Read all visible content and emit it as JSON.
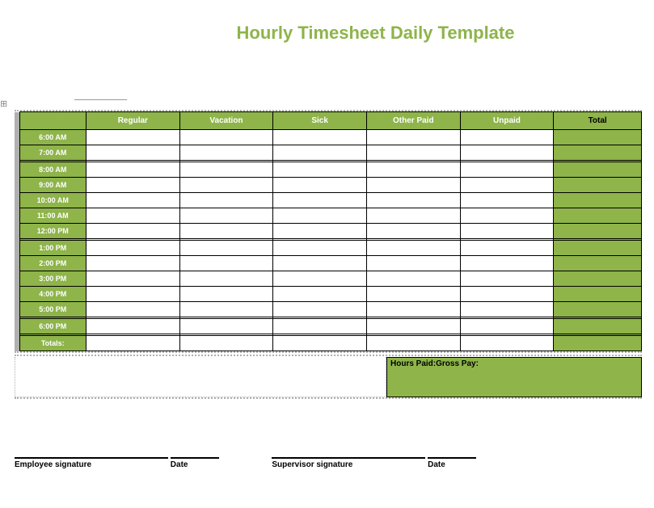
{
  "title": {
    "text": "Hourly Timesheet Daily Template",
    "color": "#8eb44a"
  },
  "colors": {
    "green": "#8eb44a",
    "gutter": "#b0b0b0",
    "border": "#000000",
    "white": "#ffffff"
  },
  "table": {
    "columns": [
      "Regular",
      "Vacation",
      "Sick",
      "Other Paid",
      "Unpaid"
    ],
    "total_label": "Total",
    "times": [
      "6:00 AM",
      "7:00 AM",
      "8:00 AM",
      "9:00 AM",
      "10:00 AM",
      "11:00 AM",
      "12:00 PM",
      "1:00 PM",
      "2:00 PM",
      "3:00 PM",
      "4:00 PM",
      "5:00 PM",
      "6:00 PM"
    ],
    "totals_label": "Totals:",
    "gap_after": [
      1,
      6,
      11,
      12
    ],
    "values": [
      [
        "",
        "",
        "",
        "",
        ""
      ],
      [
        "",
        "",
        "",
        "",
        ""
      ],
      [
        "",
        "",
        "",
        "",
        ""
      ],
      [
        "",
        "",
        "",
        "",
        ""
      ],
      [
        "",
        "",
        "",
        "",
        ""
      ],
      [
        "",
        "",
        "",
        "",
        ""
      ],
      [
        "",
        "",
        "",
        "",
        ""
      ],
      [
        "",
        "",
        "",
        "",
        ""
      ],
      [
        "",
        "",
        "",
        "",
        ""
      ],
      [
        "",
        "",
        "",
        "",
        ""
      ],
      [
        "",
        "",
        "",
        "",
        ""
      ],
      [
        "",
        "",
        "",
        "",
        ""
      ],
      [
        "",
        "",
        "",
        "",
        ""
      ]
    ],
    "row_totals": [
      "",
      "",
      "",
      "",
      "",
      "",
      "",
      "",
      "",
      "",
      "",
      "",
      ""
    ],
    "column_totals": [
      "",
      "",
      "",
      "",
      ""
    ],
    "grand_total": ""
  },
  "summary": {
    "hours_paid_label": "Hours Paid:",
    "gross_pay_label": "Gross Pay:",
    "hours_paid_value": "",
    "gross_pay_value": ""
  },
  "signatures": {
    "employee_label": "Employee signature",
    "employee_date_label": "Date",
    "supervisor_label": "Supervisor signature",
    "supervisor_date_label": "Date"
  },
  "page_marker": "⊞"
}
